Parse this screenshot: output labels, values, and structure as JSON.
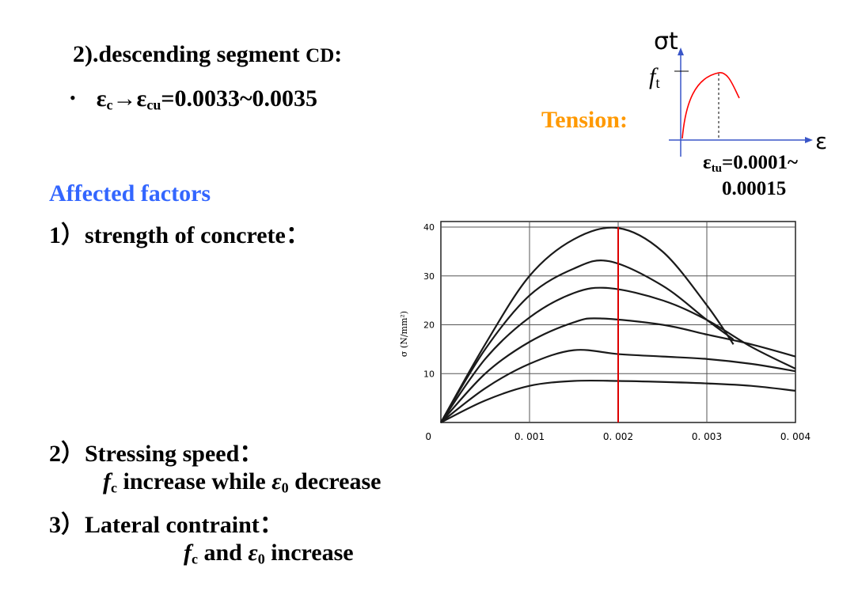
{
  "heading": {
    "prefix": "2).descending segment ",
    "segment": "CD",
    "suffix": ":"
  },
  "bullet": {
    "dot": "•",
    "eps_c": "ε",
    "sub_c": "c",
    "arrow": "→",
    "eps_cu": "ε",
    "sub_cu": "cu",
    "value": "=0.0033~0.0035"
  },
  "affected_title": "Affected factors",
  "factor1": "1）strength of concrete：",
  "factor2": {
    "title": "2）Stressing speed：",
    "f_letter": "f",
    "f_sub": "c",
    "text_mid": " increase while ",
    "eps": "ε",
    "eps_sub": "0",
    "text_end": " decrease"
  },
  "factor3": {
    "title": "3）Lateral contraint：",
    "f_letter": "f",
    "f_sub": "c",
    "text_mid": " and ",
    "eps": "ε",
    "eps_sub": "0",
    "text_end": " increase"
  },
  "tension": {
    "label": "Tension:",
    "y_axis_label": "σt",
    "ft_letter": "f",
    "ft_sub": "t",
    "x_axis_label": "ε",
    "etu_eps": "ε",
    "etu_sub": "tu",
    "etu_value_line1": "=0.0001~",
    "etu_value_line2": "0.00015",
    "curve_color": "#ff0000",
    "axis_color": "#3a56c8"
  },
  "chart_data": {
    "type": "line",
    "title": "",
    "xlabel": "",
    "ylabel": "σ (N/mm²)",
    "xlim": [
      0,
      0.004
    ],
    "ylim": [
      0,
      40
    ],
    "x_ticks": [
      "0",
      "0.001",
      "0.002",
      "0.003",
      "0.004"
    ],
    "y_ticks": [
      "10",
      "20",
      "30",
      "40"
    ],
    "grid": true,
    "marker_line": {
      "x": 0.002,
      "color": "#dd0000"
    },
    "series": [
      {
        "x": [
          0,
          0.0005,
          0.001,
          0.0015,
          0.002,
          0.0025,
          0.003,
          0.0033
        ],
        "y": [
          0,
          16,
          30,
          37.5,
          39.8,
          35,
          24,
          16
        ]
      },
      {
        "x": [
          0,
          0.0005,
          0.001,
          0.0015,
          0.0019,
          0.0025,
          0.003,
          0.0033
        ],
        "y": [
          0,
          15,
          26,
          31.5,
          33,
          28,
          21,
          17
        ]
      },
      {
        "x": [
          0,
          0.0005,
          0.001,
          0.0015,
          0.0019,
          0.0025,
          0.003,
          0.0035,
          0.004
        ],
        "y": [
          0,
          13,
          21.5,
          26.5,
          27.5,
          25,
          21,
          15.5,
          11
        ]
      },
      {
        "x": [
          0,
          0.0005,
          0.001,
          0.0015,
          0.0018,
          0.0025,
          0.003,
          0.0035,
          0.004
        ],
        "y": [
          0,
          10,
          16.5,
          20.5,
          21.3,
          20,
          18,
          16,
          13.5
        ]
      },
      {
        "x": [
          0,
          0.0005,
          0.001,
          0.0015,
          0.002,
          0.0025,
          0.003,
          0.0035,
          0.004
        ],
        "y": [
          0,
          7,
          12,
          14.8,
          14,
          13.5,
          13,
          12,
          10.5
        ]
      },
      {
        "x": [
          0,
          0.0005,
          0.001,
          0.0015,
          0.002,
          0.0025,
          0.003,
          0.0035,
          0.004
        ],
        "y": [
          0,
          4.5,
          7.5,
          8.5,
          8.5,
          8.3,
          8,
          7.5,
          6.5
        ]
      }
    ]
  }
}
